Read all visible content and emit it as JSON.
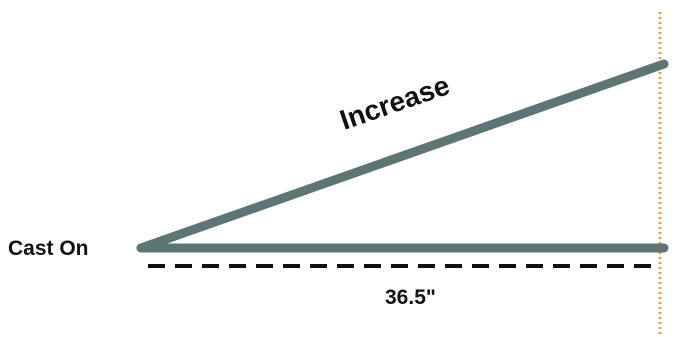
{
  "labels": {
    "increase": "Increase",
    "cast_on": "Cast On",
    "measurement": "36.5\""
  },
  "colors": {
    "edge": "#5e7574",
    "dashed_line": "#111111",
    "dotted_marker": "#e8a050",
    "text": "#111111",
    "background": "#ffffff"
  }
}
